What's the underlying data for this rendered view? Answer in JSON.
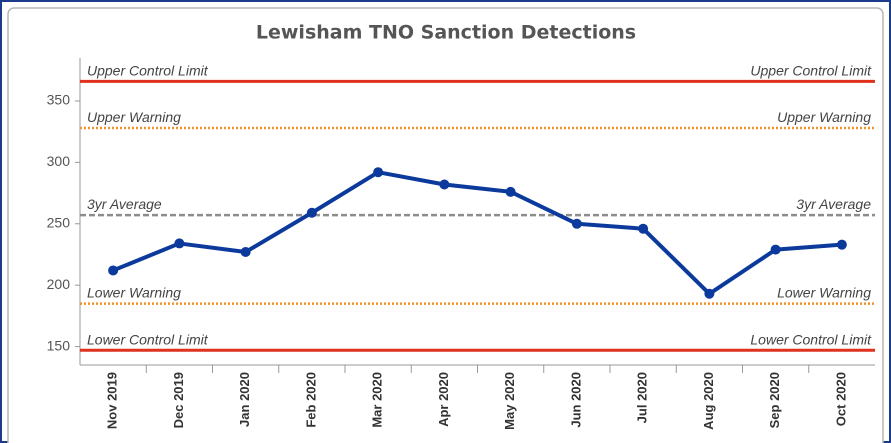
{
  "chart_data": {
    "type": "line",
    "title": "Lewisham TNO Sanction Detections",
    "categories": [
      "Nov 2019",
      "Dec 2019",
      "Jan 2020",
      "Feb 2020",
      "Mar 2020",
      "Apr 2020",
      "May 2020",
      "Jun 2020",
      "Jul 2020",
      "Aug 2020",
      "Sep 2020",
      "Oct 2020"
    ],
    "values": [
      212,
      234,
      227,
      259,
      292,
      282,
      276,
      250,
      246,
      193,
      229,
      233
    ],
    "color": "#0b3a9c",
    "ylim": [
      135,
      385
    ],
    "yticks": [
      150,
      200,
      250,
      300,
      350
    ],
    "reference_lines": [
      {
        "name": "Upper Control Limit",
        "value": 366,
        "color": "#e0301e",
        "style": "solid"
      },
      {
        "name": "Upper Warning",
        "value": 328,
        "color": "#f0922b",
        "style": "dotted"
      },
      {
        "name": "3yr Average",
        "value": 257,
        "color": "#8c8c8c",
        "style": "dashed"
      },
      {
        "name": "Lower Warning",
        "value": 185,
        "color": "#f0922b",
        "style": "dotted"
      },
      {
        "name": "Lower Control Limit",
        "value": 147,
        "color": "#e0301e",
        "style": "solid"
      }
    ]
  }
}
